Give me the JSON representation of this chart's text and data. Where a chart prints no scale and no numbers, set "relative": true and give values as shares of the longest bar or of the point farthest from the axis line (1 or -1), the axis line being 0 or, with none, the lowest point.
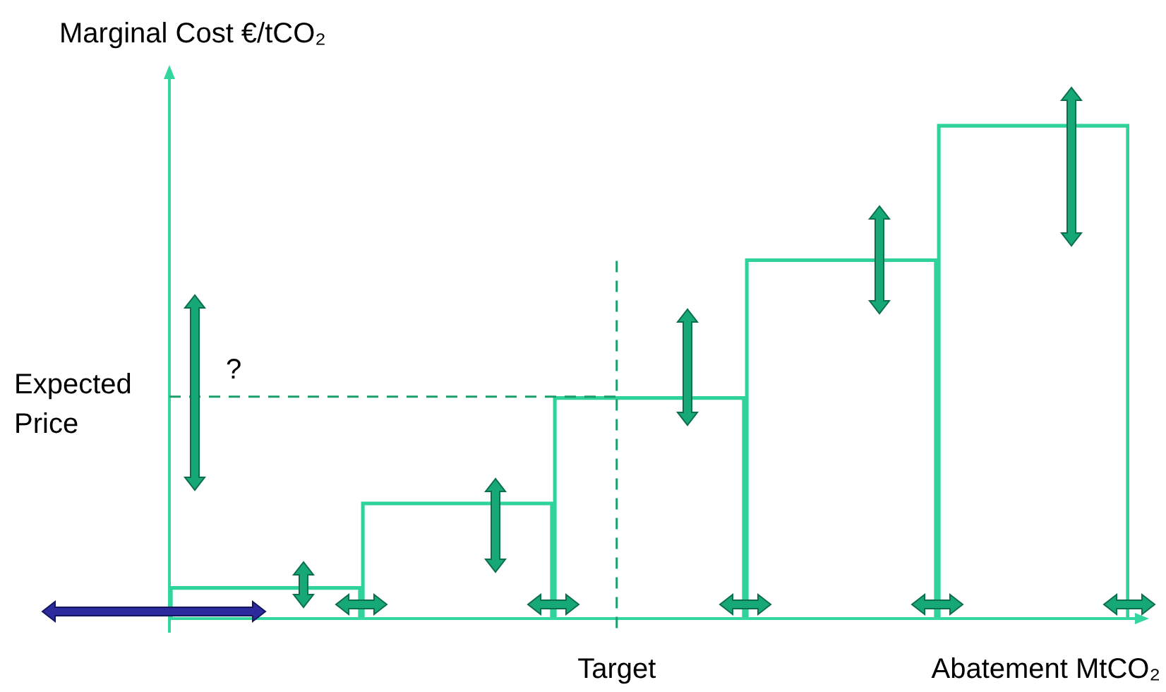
{
  "chart_data": {
    "type": "bar",
    "relative": true,
    "xlabel": "Abatement MtCO₂",
    "ylabel": "Marginal Cost €/tCO₂",
    "categories": [
      null,
      null,
      null,
      null,
      null
    ],
    "values": [
      0.065,
      0.236,
      0.449,
      0.728,
      1
    ],
    "color": "#2fd39a",
    "ref_lines": [
      {
        "axis": "y",
        "value": 0.449,
        "label": "Expected Price",
        "line_style": "dashed",
        "color": "#1a9e6a"
      }
    ],
    "annotations": [
      "?",
      "Target"
    ],
    "tick_labels": false,
    "grid": false,
    "legend": false
  }
}
